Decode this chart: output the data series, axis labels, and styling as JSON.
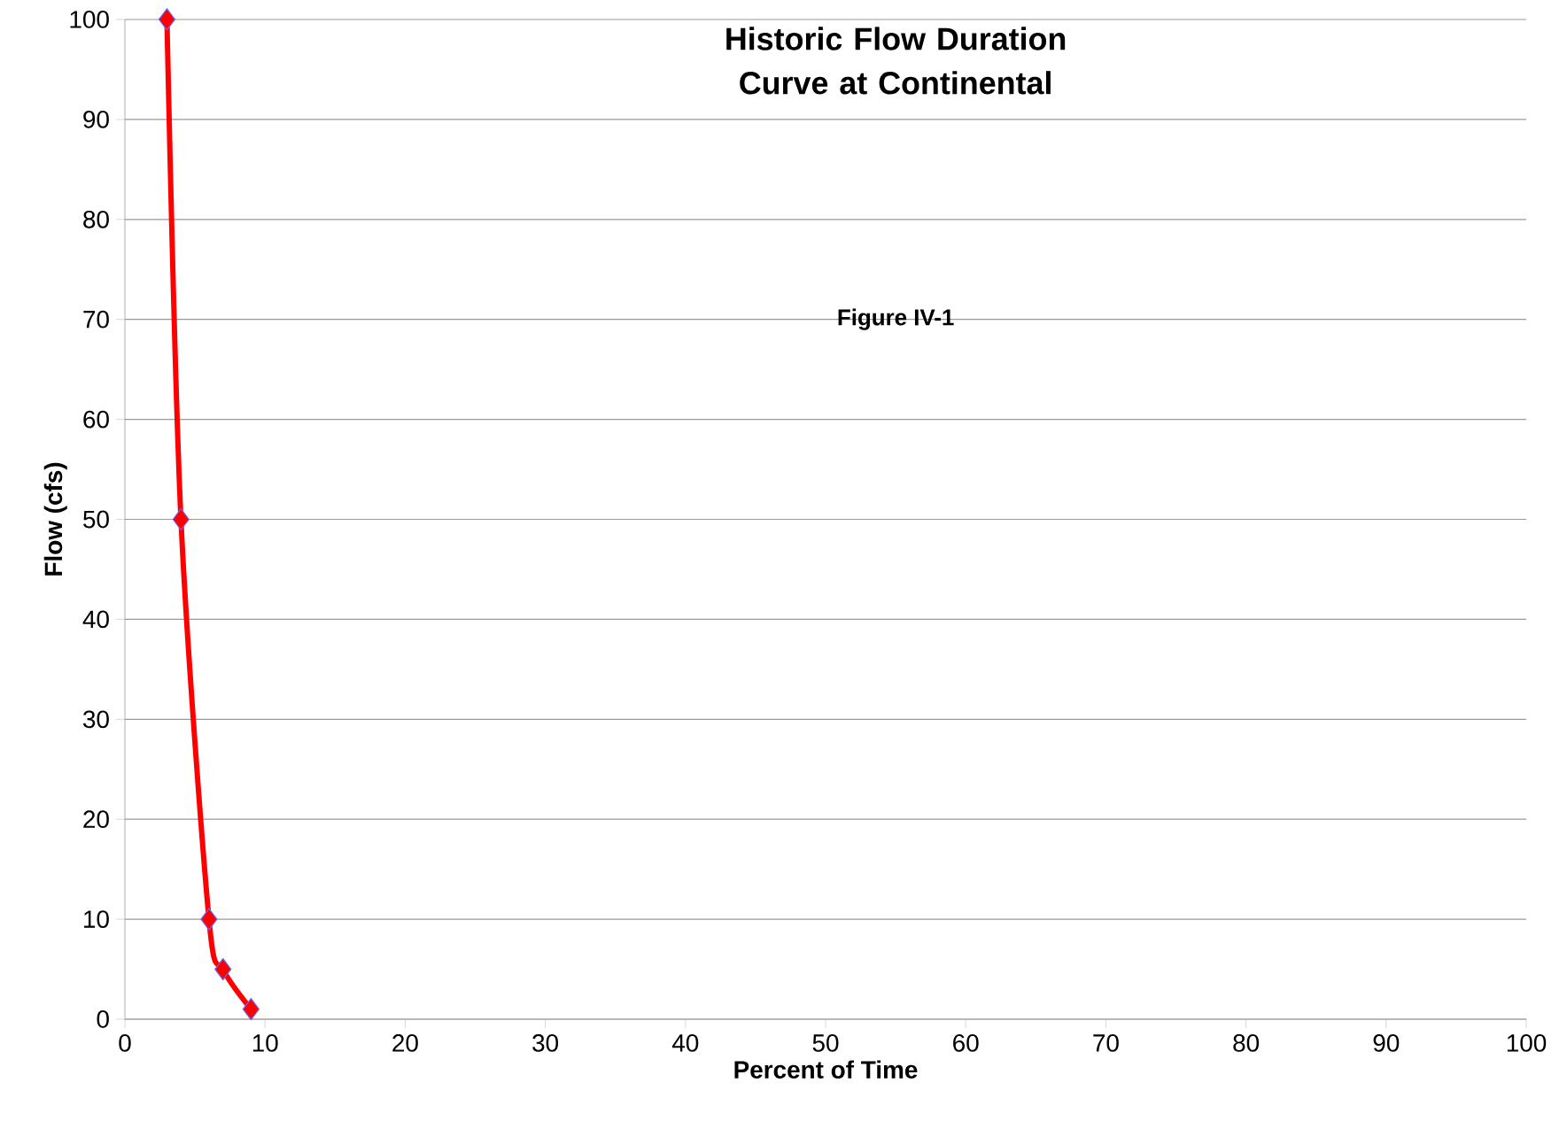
{
  "chart_data": {
    "type": "line",
    "title": "Historic Flow Duration Curve at Continental",
    "subtitle": "Figure IV-1",
    "xlabel": "Percent of Time",
    "ylabel": "Flow (cfs)",
    "x": [
      3,
      4,
      6,
      7,
      9
    ],
    "series": [
      {
        "color": "#ff0000",
        "values": [
          100,
          50,
          10,
          5,
          1
        ]
      }
    ],
    "xlim": [
      0,
      100
    ],
    "ylim": [
      0,
      100
    ],
    "xticks": [
      0,
      10,
      20,
      30,
      40,
      50,
      60,
      70,
      80,
      90,
      100
    ],
    "yticks": [
      0,
      10,
      20,
      30,
      40,
      50,
      60,
      70,
      80,
      90,
      100
    ],
    "grid": "y",
    "marker": "diamond",
    "line_style": "solid"
  }
}
